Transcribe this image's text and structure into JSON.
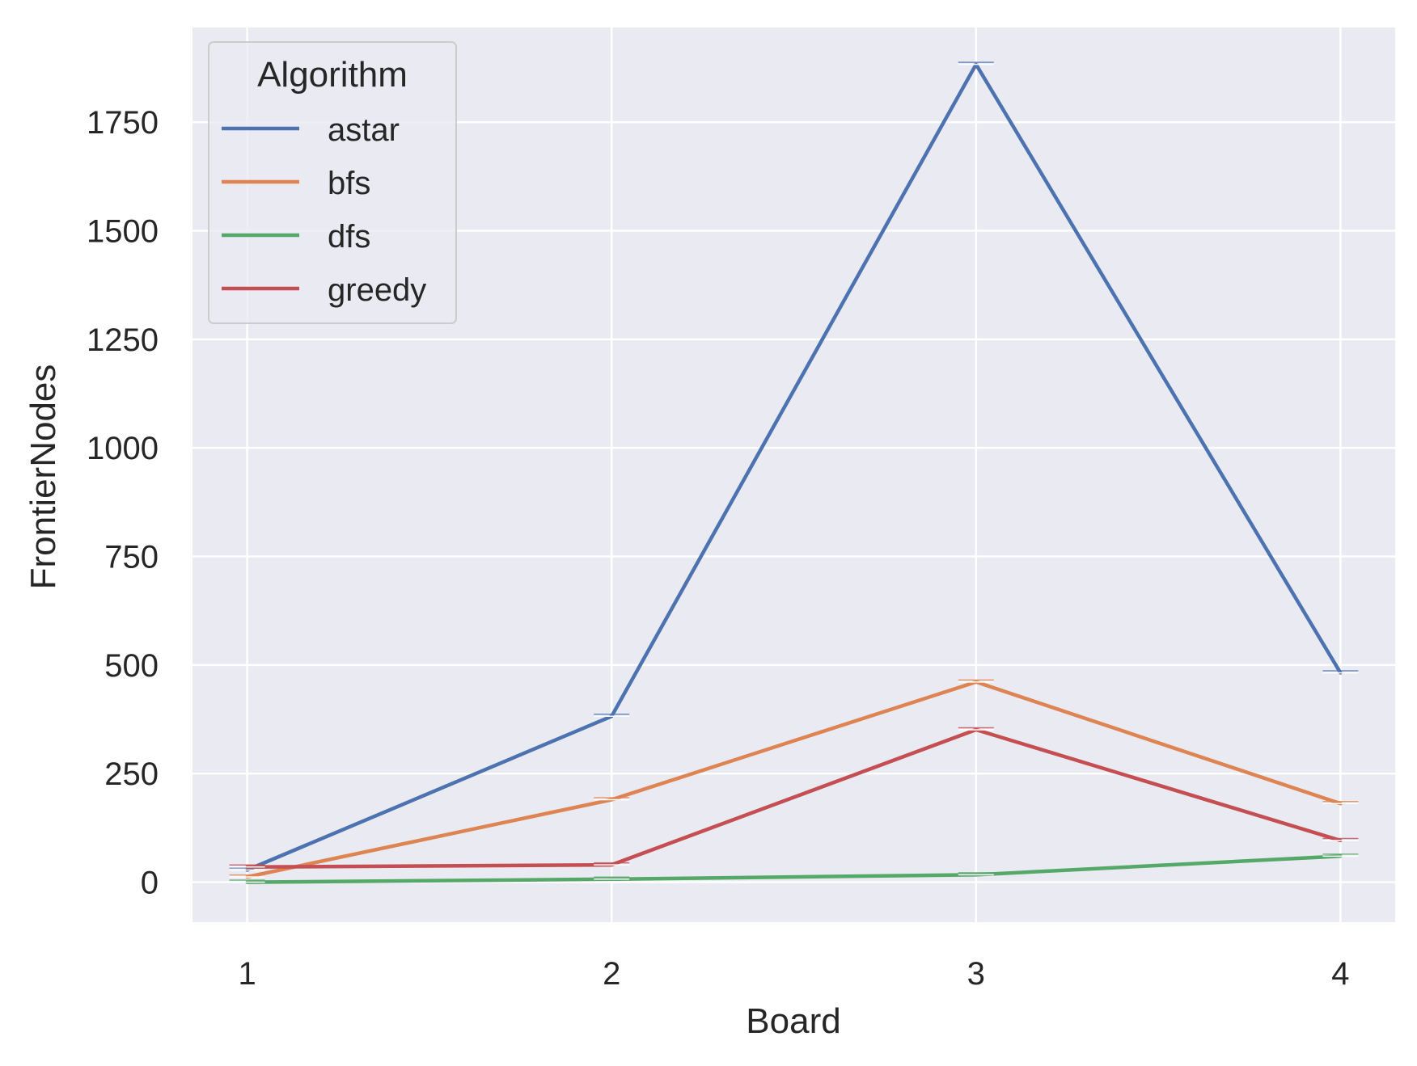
{
  "chart_data": {
    "type": "line",
    "xlabel": "Board",
    "ylabel": "FrontierNodes",
    "x": [
      1,
      2,
      3,
      4
    ],
    "x_ticks": [
      "1",
      "2",
      "3",
      "4"
    ],
    "y_ticks": [
      "0",
      "250",
      "500",
      "750",
      "1000",
      "1250",
      "1500",
      "1750"
    ],
    "xlim": [
      0.85,
      4.15
    ],
    "ylim": [
      -92,
      1968
    ],
    "grid": true,
    "background": "#eaeaf2",
    "legend": {
      "title": "Algorithm",
      "placement": "top-left"
    },
    "series": [
      {
        "name": "astar",
        "color": "#4c72b0",
        "values": [
          28,
          382,
          1883,
          482
        ]
      },
      {
        "name": "bfs",
        "color": "#dd8452",
        "values": [
          12,
          190,
          461,
          181
        ]
      },
      {
        "name": "dfs",
        "color": "#55a868",
        "values": [
          0,
          7,
          17,
          60
        ]
      },
      {
        "name": "greedy",
        "color": "#c44e52",
        "values": [
          35,
          40,
          351,
          96
        ]
      }
    ]
  }
}
